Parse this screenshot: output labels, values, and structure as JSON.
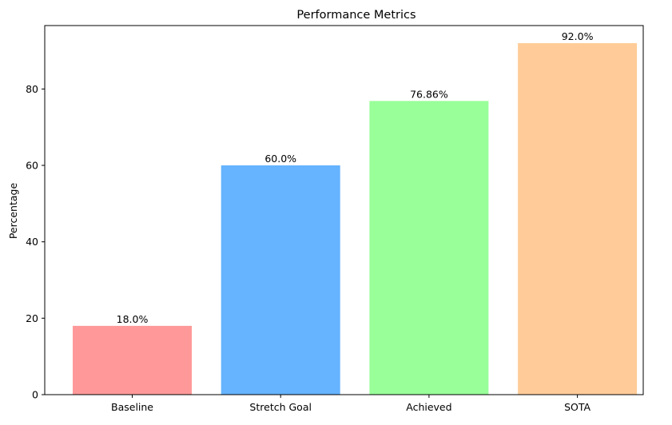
{
  "chart_data": {
    "type": "bar",
    "title": "Performance Metrics",
    "xlabel": "",
    "ylabel": "Percentage",
    "categories": [
      "Baseline",
      "Stretch Goal",
      "Achieved",
      "SOTA"
    ],
    "values": [
      18.0,
      60.0,
      76.86,
      92.0
    ],
    "value_labels": [
      "18.0%",
      "60.0%",
      "76.86%",
      "92.0%"
    ],
    "colors": [
      "#ff9999",
      "#66b3ff",
      "#99ff99",
      "#ffcc99"
    ],
    "ylim": [
      0,
      96.6
    ],
    "yticks": [
      0,
      20,
      40,
      60,
      80
    ],
    "grid": false,
    "legend": "none"
  }
}
